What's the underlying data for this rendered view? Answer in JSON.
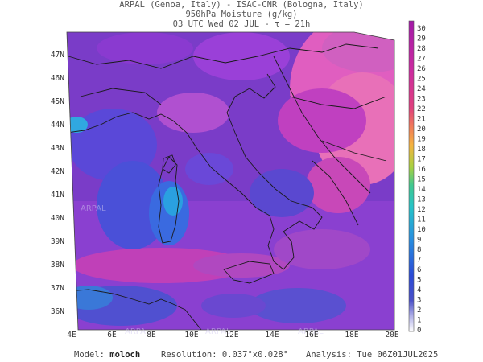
{
  "header": {
    "line1": "ARPAL (Genoa, Italy)  -  ISAC-CNR (Bologna, Italy)",
    "line2": "950hPa Moisture (g/kg)",
    "line3": "03 UTC Wed 02 JUL  -  τ = 21h"
  },
  "map": {
    "lat_labels": [
      "47N",
      "46N",
      "45N",
      "44N",
      "43N",
      "42N",
      "41N",
      "40N",
      "39N",
      "38N",
      "37N",
      "36N"
    ],
    "lon_labels": [
      "4E",
      "6E",
      "8E",
      "10E",
      "12E",
      "14E",
      "16E",
      "18E",
      "20E"
    ],
    "watermark": "ARPAL"
  },
  "colorbar": {
    "labels": [
      "30",
      "29",
      "28",
      "27",
      "26",
      "25",
      "24",
      "23",
      "22",
      "21",
      "20",
      "19",
      "18",
      "17",
      "16",
      "15",
      "14",
      "13",
      "12",
      "11",
      "10",
      "9",
      "8",
      "7",
      "6",
      "5",
      "4",
      "3",
      "2",
      "1",
      "0"
    ],
    "colors": {
      "high": "#a31aa8",
      "mid_high": "#e0407e",
      "mid": "#f5b340",
      "mid_low": "#26c3c8",
      "low": "#2b4ad6",
      "lowest": "#ffffff"
    }
  },
  "footer": {
    "model_label": "Model:",
    "model_value": "moloch",
    "resolution_label": "Resolution:",
    "resolution_value": "0.037°x0.028°",
    "analysis_label": "Analysis:",
    "analysis_value": "Tue 06Z01JUL2025"
  }
}
